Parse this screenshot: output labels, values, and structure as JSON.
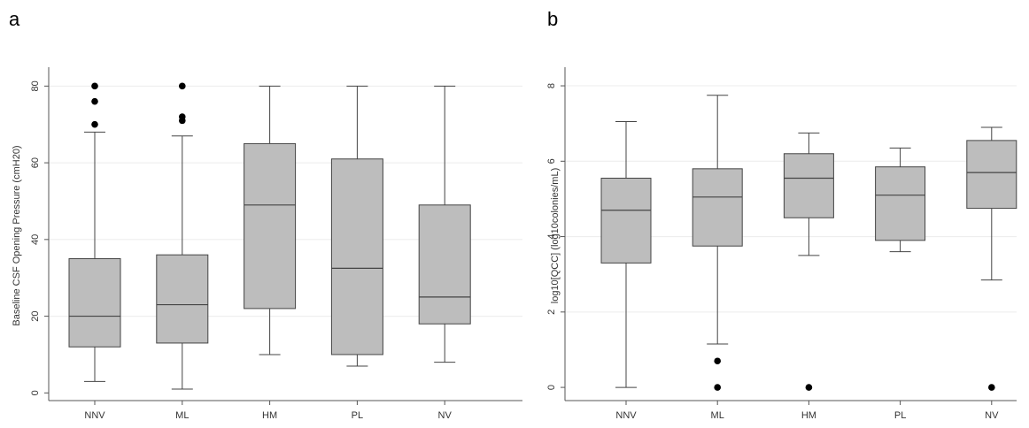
{
  "panels": [
    {
      "letter": "a"
    },
    {
      "letter": "b"
    }
  ],
  "chart_data": [
    {
      "type": "box",
      "panel": "a",
      "categories": [
        "NNV",
        "ML",
        "HM",
        "PL",
        "NV"
      ],
      "ylabel": "Baseline CSF Opening Pressure (cmH20)",
      "xlabel": "",
      "ylim": [
        -2,
        84
      ],
      "yticks": [
        0,
        20,
        40,
        60,
        80
      ],
      "grid": true,
      "box_color": "#bdbdbd",
      "boxes": [
        {
          "category": "NNV",
          "whisker_low": 3,
          "q1": 12,
          "median": 20,
          "q3": 35,
          "whisker_high": 68,
          "outliers": [
            70,
            76,
            80
          ]
        },
        {
          "category": "ML",
          "whisker_low": 1,
          "q1": 13,
          "median": 23,
          "q3": 36,
          "whisker_high": 67,
          "outliers": [
            71,
            72,
            80
          ]
        },
        {
          "category": "HM",
          "whisker_low": 10,
          "q1": 22,
          "median": 49,
          "q3": 65,
          "whisker_high": 80,
          "outliers": []
        },
        {
          "category": "PL",
          "whisker_low": 7,
          "q1": 10,
          "median": 32.5,
          "q3": 61,
          "whisker_high": 80,
          "outliers": []
        },
        {
          "category": "NV",
          "whisker_low": 8,
          "q1": 18,
          "median": 25,
          "q3": 49,
          "whisker_high": 80,
          "outliers": []
        }
      ]
    },
    {
      "type": "box",
      "panel": "b",
      "categories": [
        "NNV",
        "ML",
        "HM",
        "PL",
        "NV"
      ],
      "ylabel": "log10[QCC] (log10colonies/mL)",
      "xlabel": "",
      "ylim": [
        -0.35,
        8.4
      ],
      "yticks": [
        0,
        2,
        4,
        6,
        8
      ],
      "grid": true,
      "box_color": "#bdbdbd",
      "boxes": [
        {
          "category": "NNV",
          "whisker_low": 0,
          "q1": 3.3,
          "median": 4.7,
          "q3": 5.55,
          "whisker_high": 7.05,
          "outliers": []
        },
        {
          "category": "ML",
          "whisker_low": 1.15,
          "q1": 3.75,
          "median": 5.05,
          "q3": 5.8,
          "whisker_high": 7.75,
          "outliers": [
            0,
            0.7
          ]
        },
        {
          "category": "HM",
          "whisker_low": 3.5,
          "q1": 4.5,
          "median": 5.55,
          "q3": 6.2,
          "whisker_high": 6.75,
          "outliers": [
            0
          ]
        },
        {
          "category": "PL",
          "whisker_low": 3.6,
          "q1": 3.9,
          "median": 5.1,
          "q3": 5.85,
          "whisker_high": 6.35,
          "outliers": []
        },
        {
          "category": "NV",
          "whisker_low": 2.85,
          "q1": 4.75,
          "median": 5.7,
          "q3": 6.55,
          "whisker_high": 6.9,
          "outliers": [
            0
          ]
        }
      ]
    }
  ]
}
